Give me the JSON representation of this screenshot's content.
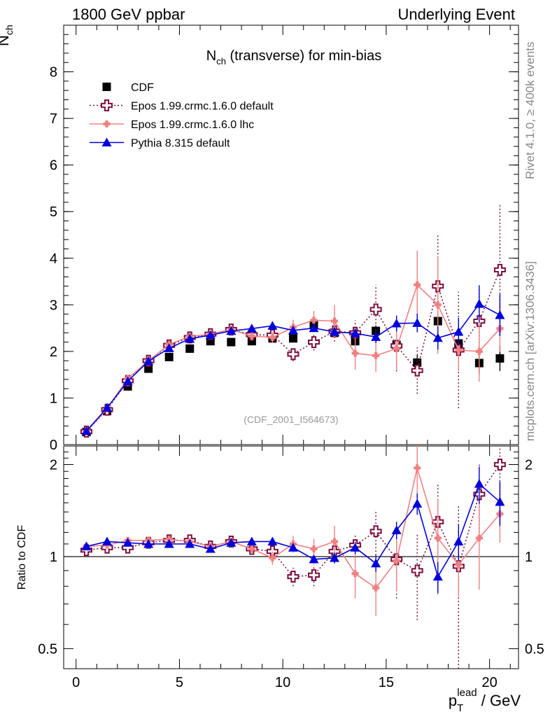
{
  "header": {
    "left": "1800 GeV ppbar",
    "right": "Underlying Event",
    "rivet": "Rivet 4.1.0, ≥ 400k events",
    "mcplots": "mcplots.cern.ch [arXiv:1306.3436]"
  },
  "chart_data": [
    {
      "type": "scatter",
      "title": "N_ch (transverse) for min-bias",
      "ylabel": "N_ch",
      "xlabel": "p_T^lead / GeV",
      "xlim": [
        -0.6,
        21.4
      ],
      "ylim": [
        0,
        9
      ],
      "yticks": [
        0,
        1,
        2,
        3,
        4,
        5,
        6,
        7,
        8
      ],
      "xticks": [
        0,
        5,
        10,
        15,
        20
      ],
      "annotation": "(CDF_2001_I564673)",
      "legend_position": "top-left",
      "x": [
        0.5,
        1.5,
        2.5,
        3.5,
        4.5,
        5.5,
        6.5,
        7.5,
        8.5,
        9.5,
        10.5,
        11.5,
        12.5,
        13.5,
        14.5,
        15.5,
        16.5,
        17.5,
        18.5,
        19.5,
        20.5
      ],
      "series": [
        {
          "name": "CDF",
          "color": "#000000",
          "marker": "square",
          "line": "none",
          "values": [
            0.27,
            0.72,
            1.25,
            1.63,
            1.88,
            2.06,
            2.22,
            2.2,
            2.22,
            2.28,
            2.28,
            2.57,
            2.4,
            2.22,
            2.44,
            2.14,
            1.76,
            2.65,
            2.17,
            1.75,
            1.85
          ],
          "errors": [
            0.02,
            0.03,
            0.04,
            0.05,
            0.05,
            0.05,
            0.05,
            0.05,
            0.05,
            0.06,
            0.07,
            0.08,
            0.09,
            0.1,
            0.12,
            0.14,
            0.16,
            0.19,
            0.21,
            0.23,
            0.27
          ]
        },
        {
          "name": "Epos 1.99.crmc.1.6.0 default",
          "color": "#7a1040",
          "marker": "open-cross",
          "line": "dotted",
          "values": [
            0.28,
            0.75,
            1.37,
            1.8,
            2.13,
            2.3,
            2.37,
            2.47,
            2.36,
            2.35,
            1.94,
            2.2,
            2.43,
            2.4,
            2.9,
            2.12,
            1.59,
            3.4,
            2.03,
            2.65,
            3.75
          ],
          "errors": [
            0.02,
            0.03,
            0.04,
            0.05,
            0.05,
            0.06,
            0.07,
            0.08,
            0.1,
            0.12,
            0.15,
            0.18,
            0.22,
            0.27,
            0.53,
            0.55,
            0.5,
            1.12,
            1.25,
            0.7,
            1.42
          ]
        },
        {
          "name": "Epos 1.99.crmc.1.6.0 lhc",
          "color": "#f08080",
          "marker": "cross",
          "line": "solid",
          "values": [
            0.28,
            0.77,
            1.42,
            1.8,
            2.15,
            2.32,
            2.37,
            2.47,
            2.33,
            2.3,
            2.52,
            2.67,
            2.65,
            1.96,
            1.91,
            2.06,
            3.43,
            3.0,
            2.03,
            2.0,
            2.49
          ],
          "errors": [
            0.02,
            0.03,
            0.04,
            0.05,
            0.05,
            0.06,
            0.07,
            0.08,
            0.1,
            0.12,
            0.16,
            0.2,
            0.35,
            0.35,
            0.35,
            0.45,
            0.73,
            1.05,
            0.45,
            0.65,
            0.5
          ]
        },
        {
          "name": "Pythia 8.315 default",
          "color": "#0000dd",
          "marker": "triangle",
          "line": "solid",
          "values": [
            0.29,
            0.79,
            1.36,
            1.79,
            2.07,
            2.27,
            2.35,
            2.44,
            2.49,
            2.55,
            2.45,
            2.5,
            2.42,
            2.39,
            2.31,
            2.6,
            2.61,
            2.29,
            2.42,
            3.02,
            2.78
          ],
          "errors": [
            0.02,
            0.02,
            0.03,
            0.03,
            0.03,
            0.03,
            0.04,
            0.04,
            0.05,
            0.05,
            0.06,
            0.07,
            0.09,
            0.1,
            0.13,
            0.17,
            0.2,
            0.25,
            0.3,
            0.4,
            0.45
          ]
        }
      ]
    },
    {
      "type": "scatter",
      "title": "",
      "ylabel": "Ratio to CDF",
      "xlabel": "p_T^lead / GeV",
      "xlim": [
        -0.6,
        21.4
      ],
      "ylim": [
        0.43,
        2.3
      ],
      "yscale": "log",
      "yticks": [
        0.5,
        1,
        2
      ],
      "yticklabels": [
        "0.5",
        "1",
        "2"
      ],
      "xticks": [
        0,
        5,
        10,
        15,
        20
      ],
      "xticklabels": [
        "0",
        "5",
        "10",
        "15",
        "20"
      ],
      "reference_line": 1,
      "x": [
        0.5,
        1.5,
        2.5,
        3.5,
        4.5,
        5.5,
        6.5,
        7.5,
        8.5,
        9.5,
        10.5,
        11.5,
        12.5,
        13.5,
        14.5,
        15.5,
        16.5,
        17.5,
        18.5,
        19.5,
        20.5
      ],
      "series": [
        {
          "name": "Epos 1.99.crmc.1.6.0 default",
          "color": "#7a1040",
          "marker": "open-cross",
          "line": "dotted",
          "values": [
            1.05,
            1.07,
            1.07,
            1.11,
            1.13,
            1.13,
            1.08,
            1.12,
            1.06,
            1.04,
            0.86,
            0.87,
            1.04,
            1.09,
            1.21,
            0.98,
            0.9,
            1.3,
            0.93,
            1.6,
            2.0
          ],
          "errors": [
            0.01,
            0.01,
            0.01,
            0.01,
            0.02,
            0.02,
            0.03,
            0.03,
            0.04,
            0.05,
            0.06,
            0.07,
            0.08,
            0.1,
            0.2,
            0.25,
            0.28,
            0.42,
            0.55,
            0.4,
            0.75
          ]
        },
        {
          "name": "Epos 1.99.crmc.1.6.0 lhc",
          "color": "#f08080",
          "marker": "cross",
          "line": "solid",
          "values": [
            1.08,
            1.09,
            1.13,
            1.13,
            1.14,
            1.12,
            1.08,
            1.12,
            1.06,
            0.99,
            1.1,
            1.06,
            1.12,
            0.88,
            0.79,
            0.97,
            1.95,
            1.15,
            0.94,
            1.15,
            1.38
          ],
          "errors": [
            0.01,
            0.01,
            0.01,
            0.02,
            0.02,
            0.02,
            0.03,
            0.03,
            0.04,
            0.05,
            0.07,
            0.08,
            0.14,
            0.15,
            0.15,
            0.2,
            0.4,
            0.4,
            0.2,
            0.37,
            0.27
          ]
        },
        {
          "name": "Pythia 8.315 default",
          "color": "#0000dd",
          "marker": "triangle",
          "line": "solid",
          "values": [
            1.08,
            1.12,
            1.11,
            1.1,
            1.1,
            1.1,
            1.06,
            1.11,
            1.12,
            1.12,
            1.07,
            0.98,
            0.99,
            1.07,
            0.95,
            1.22,
            1.49,
            0.86,
            1.12,
            1.73,
            1.51
          ],
          "errors": [
            0.01,
            0.01,
            0.01,
            0.01,
            0.01,
            0.01,
            0.02,
            0.02,
            0.02,
            0.02,
            0.03,
            0.03,
            0.04,
            0.05,
            0.06,
            0.08,
            0.12,
            0.1,
            0.15,
            0.24,
            0.25
          ]
        }
      ]
    }
  ]
}
